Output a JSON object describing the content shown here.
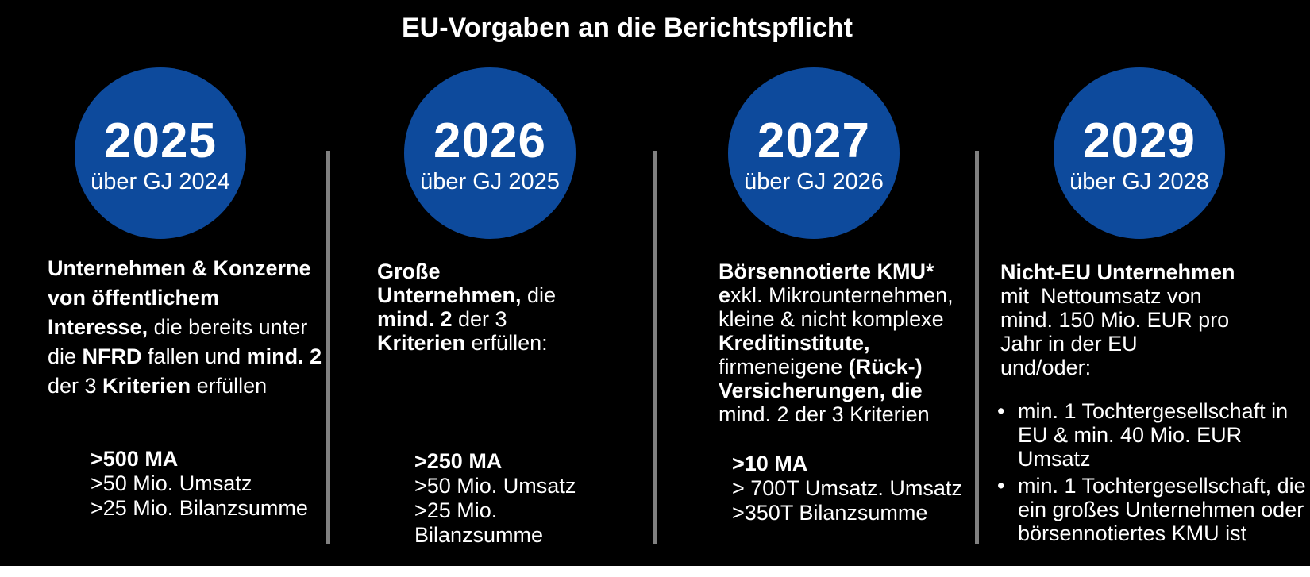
{
  "title": "EU-Vorgaben an die Berichtspflicht",
  "colors": {
    "background": "#000000",
    "text": "#ffffff",
    "circle_blue": "#0d4a9c",
    "divider_gray": "#808080",
    "page_bottom": "#ffffff"
  },
  "columns": [
    {
      "year": "2025",
      "fiscal_year": "über GJ 2024",
      "description": [
        {
          "text": "Unternehmen & Konzerne\nvon öffentlichem\nInteresse,",
          "bold": true
        },
        {
          "text": " die bereits unter\ndie ",
          "bold": false
        },
        {
          "text": "NFRD",
          "bold": true
        },
        {
          "text": " fallen und ",
          "bold": false
        },
        {
          "text": "mind. 2",
          "bold": true
        },
        {
          "text": "\nder 3 ",
          "bold": false
        },
        {
          "text": "Kriterien",
          "bold": true
        },
        {
          "text": " erfüllen",
          "bold": false
        }
      ],
      "criteria": [
        {
          "text": ">500 MA",
          "bold": true
        },
        {
          "text": ">50 Mio. Umsatz",
          "bold": false
        },
        {
          "text": ">25 Mio. Bilanzsumme",
          "bold": false
        }
      ]
    },
    {
      "year": "2026",
      "fiscal_year": "über GJ 2025",
      "description": [
        {
          "text": "Große\nUnternehmen,",
          "bold": true
        },
        {
          "text": " die\n",
          "bold": false
        },
        {
          "text": "mind. 2",
          "bold": true
        },
        {
          "text": " der 3\n",
          "bold": false
        },
        {
          "text": "Kriterien",
          "bold": true
        },
        {
          "text": " erfüllen:",
          "bold": false
        }
      ],
      "criteria": [
        {
          "text": ">250 MA",
          "bold": true
        },
        {
          "text": ">50 Mio. Umsatz",
          "bold": false
        },
        {
          "text": ">25 Mio.\nBilanzsumme",
          "bold": false
        }
      ]
    },
    {
      "year": "2027",
      "fiscal_year": "über GJ 2026",
      "description": [
        {
          "text": "Börsennotierte KMU*",
          "bold": true
        },
        {
          "text": "\n",
          "bold": false
        },
        {
          "text": "e",
          "bold": true
        },
        {
          "text": "xkl. Mikrounternehmen,\nkleine & nicht komplexe\n",
          "bold": false
        },
        {
          "text": "Kreditinstitute,",
          "bold": true
        },
        {
          "text": "\nfirmeneigene ",
          "bold": false
        },
        {
          "text": "(Rück-)\nVersicherungen, die",
          "bold": true
        },
        {
          "text": "\nmind. 2 der 3 Kriterien",
          "bold": false
        }
      ],
      "criteria": [
        {
          "text": ">10 MA",
          "bold": true
        },
        {
          "text": "> 700T Umsatz. Umsatz",
          "bold": false
        },
        {
          "text": ">350T Bilanzsumme",
          "bold": false
        }
      ]
    },
    {
      "year": "2029",
      "fiscal_year": "über GJ 2028",
      "description": [
        {
          "text": "Nicht-EU Unternehmen",
          "bold": true
        },
        {
          "text": "\nmit  Nettoumsatz von\nmind. 150 Mio. EUR pro\nJahr in der EU\nund/oder:",
          "bold": false
        }
      ],
      "bullets": [
        "min. 1 Tochtergesellschaft in\nEU & min. 40 Mio. EUR Umsatz",
        "min. 1 Tochtergesellschaft, die\nein großes Unternehmen oder\nbörsennotiertes KMU ist"
      ]
    }
  ]
}
